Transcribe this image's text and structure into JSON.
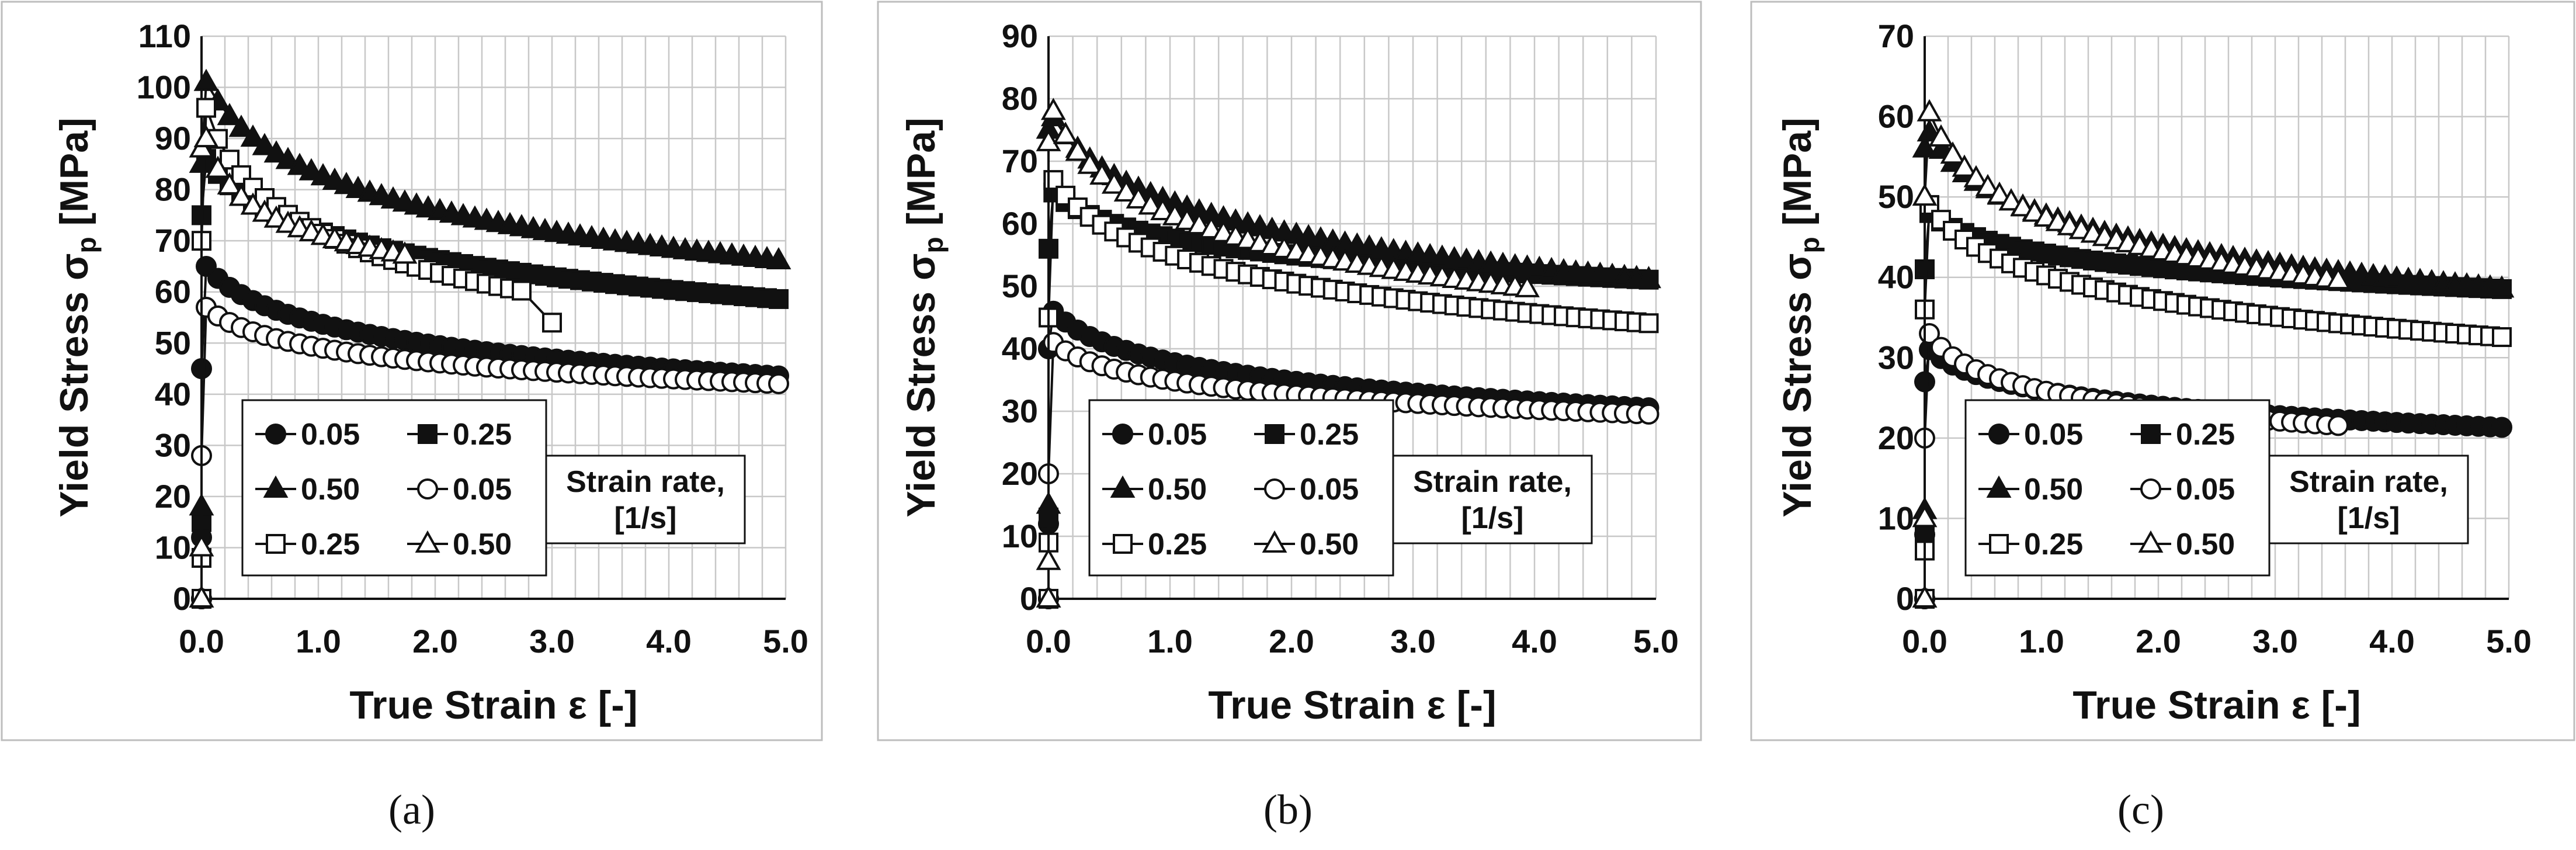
{
  "figure": {
    "captions": [
      "(a)",
      "(b)",
      "(c)"
    ]
  },
  "chart_data": [
    {
      "id": "a",
      "type": "line",
      "xlabel": "True Strain ε [-]",
      "ylabel_main": "Yield Stress σ",
      "ylabel_sub": "p",
      "ylabel_unit": " [MPa]",
      "xlim": [
        0,
        5
      ],
      "ylim": [
        0,
        110
      ],
      "ystep": 10,
      "xticks": [
        "0.0",
        "1.0",
        "2.0",
        "3.0",
        "4.0",
        "5.0"
      ],
      "yticks": [
        "0",
        "10",
        "20",
        "30",
        "40",
        "50",
        "60",
        "70",
        "80",
        "90",
        "100",
        "110"
      ],
      "legend_title": [
        "Strain rate,",
        "[1/s]"
      ],
      "series": [
        {
          "name": "0.05",
          "marker": "circle",
          "fill": "filled",
          "peak": 65,
          "end": 43.5,
          "xend": 5.0,
          "k": 2.4,
          "rise": [
            0,
            12,
            45
          ]
        },
        {
          "name": "0.25",
          "marker": "square",
          "fill": "filled",
          "peak": 86,
          "end": 58.5,
          "xend": 5.0,
          "k": 2.3,
          "rise": [
            0,
            15,
            75
          ]
        },
        {
          "name": "0.50",
          "marker": "triangle",
          "fill": "filled",
          "peak": 101,
          "end": 66,
          "xend": 5.0,
          "k": 2.4,
          "rise": [
            0,
            18,
            85
          ]
        },
        {
          "name": "0.05",
          "marker": "circle",
          "fill": "open",
          "peak": 57,
          "end": 42,
          "xend": 5.0,
          "k": 2.6,
          "rise": [
            0,
            28
          ]
        },
        {
          "name": "0.25",
          "marker": "square",
          "fill": "open",
          "peak": 96,
          "end": 60,
          "xend": 2.8,
          "k": 2.2,
          "rise": [
            0,
            8,
            70
          ],
          "tail": [
            54
          ]
        },
        {
          "name": "0.50",
          "marker": "triangle",
          "fill": "open",
          "peak": 90,
          "end": 67,
          "xend": 1.8,
          "k": 2.8,
          "rise": [
            0,
            10,
            88
          ]
        }
      ]
    },
    {
      "id": "b",
      "type": "line",
      "xlabel": "True Strain ε [-]",
      "ylabel_main": "Yield Stress σ",
      "ylabel_sub": "p",
      "ylabel_unit": " [MPa]",
      "xlim": [
        0,
        5
      ],
      "ylim": [
        0,
        90
      ],
      "ystep": 10,
      "xticks": [
        "0.0",
        "1.0",
        "2.0",
        "3.0",
        "4.0",
        "5.0"
      ],
      "yticks": [
        "0",
        "10",
        "20",
        "30",
        "40",
        "50",
        "60",
        "70",
        "80",
        "90"
      ],
      "legend_title": [
        "Strain rate,",
        "[1/s]"
      ],
      "series": [
        {
          "name": "0.05",
          "marker": "circle",
          "fill": "filled",
          "peak": 46,
          "end": 30.5,
          "xend": 5.0,
          "k": 2.5,
          "rise": [
            0,
            12,
            40
          ]
        },
        {
          "name": "0.25",
          "marker": "square",
          "fill": "filled",
          "peak": 65,
          "end": 51,
          "xend": 5.0,
          "k": 2.4,
          "rise": [
            0,
            13,
            56
          ]
        },
        {
          "name": "0.50",
          "marker": "triangle",
          "fill": "filled",
          "peak": 77,
          "end": 51,
          "xend": 5.0,
          "k": 2.5,
          "rise": [
            0,
            15,
            75
          ]
        },
        {
          "name": "0.05",
          "marker": "circle",
          "fill": "open",
          "peak": 41,
          "end": 29.5,
          "xend": 5.0,
          "k": 2.7,
          "rise": [
            0,
            20
          ]
        },
        {
          "name": "0.25",
          "marker": "square",
          "fill": "open",
          "peak": 67,
          "end": 44,
          "xend": 5.0,
          "k": 2.4,
          "rise": [
            0,
            9,
            45
          ]
        },
        {
          "name": "0.50",
          "marker": "triangle",
          "fill": "open",
          "peak": 78,
          "end": 49.5,
          "xend": 4.0,
          "k": 2.5,
          "rise": [
            0,
            6,
            73
          ]
        }
      ]
    },
    {
      "id": "c",
      "type": "line",
      "xlabel": "True Strain ε [-]",
      "ylabel_main": "Yield Stress σ",
      "ylabel_sub": "p",
      "ylabel_unit": " [MPa]",
      "xlim": [
        0,
        5
      ],
      "ylim": [
        0,
        70
      ],
      "ystep": 10,
      "xticks": [
        "0.0",
        "1.0",
        "2.0",
        "3.0",
        "4.0",
        "5.0"
      ],
      "yticks": [
        "0",
        "10",
        "20",
        "30",
        "40",
        "50",
        "60",
        "70"
      ],
      "legend_title": [
        "Strain rate,",
        "[1/s]"
      ],
      "series": [
        {
          "name": "0.05",
          "marker": "circle",
          "fill": "filled",
          "peak": 31,
          "end": 21.3,
          "xend": 5.0,
          "k": 2.6,
          "rise": [
            0,
            8,
            27
          ]
        },
        {
          "name": "0.25",
          "marker": "square",
          "fill": "filled",
          "peak": 48,
          "end": 38.5,
          "xend": 5.0,
          "k": 2.5,
          "rise": [
            0,
            8,
            41
          ]
        },
        {
          "name": "0.50",
          "marker": "triangle",
          "fill": "filled",
          "peak": 58,
          "end": 38.5,
          "xend": 5.0,
          "k": 2.5,
          "rise": [
            0,
            11,
            56
          ]
        },
        {
          "name": "0.05",
          "marker": "circle",
          "fill": "open",
          "peak": 33,
          "end": 21.5,
          "xend": 3.6,
          "k": 2.6,
          "rise": [
            0,
            20
          ]
        },
        {
          "name": "0.25",
          "marker": "square",
          "fill": "open",
          "peak": 49,
          "end": 32.5,
          "xend": 5.0,
          "k": 2.5,
          "rise": [
            0,
            6,
            36
          ]
        },
        {
          "name": "0.50",
          "marker": "triangle",
          "fill": "open",
          "peak": 60.5,
          "end": 39.5,
          "xend": 3.6,
          "k": 2.6,
          "rise": [
            0,
            10,
            50
          ]
        }
      ]
    }
  ]
}
